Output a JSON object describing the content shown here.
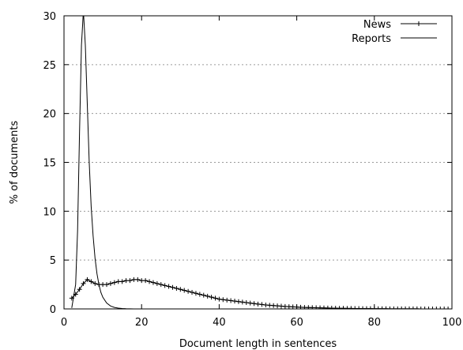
{
  "chart_data": {
    "type": "line",
    "title": "",
    "xlabel": "Document length in sentences",
    "ylabel": "% of documents",
    "xlim": [
      0,
      100
    ],
    "ylim": [
      0,
      30
    ],
    "x_ticks": [
      0,
      20,
      40,
      60,
      80,
      100
    ],
    "y_ticks": [
      0,
      5,
      10,
      15,
      20,
      25,
      30
    ],
    "grid": "horizontal dotted",
    "legend_position": "top-right",
    "series": [
      {
        "name": "News",
        "marker": "plus",
        "color": "#000000",
        "x": [
          2,
          3,
          4,
          5,
          6,
          7,
          8,
          9,
          10,
          11,
          12,
          13,
          14,
          15,
          16,
          17,
          18,
          19,
          20,
          21,
          22,
          23,
          24,
          25,
          26,
          27,
          28,
          29,
          30,
          31,
          32,
          33,
          34,
          35,
          36,
          37,
          38,
          39,
          40,
          41,
          42,
          43,
          44,
          45,
          46,
          47,
          48,
          49,
          50,
          51,
          52,
          53,
          54,
          55,
          56,
          57,
          58,
          59,
          60,
          61,
          62,
          63,
          64,
          65,
          66,
          67,
          68,
          69,
          70,
          71,
          72,
          73,
          74,
          75,
          76,
          77,
          78,
          79,
          80,
          81,
          82,
          83,
          84,
          85,
          86,
          87,
          88,
          89,
          90,
          91,
          92,
          93,
          94,
          95,
          96,
          97,
          98,
          99,
          100
        ],
        "y": [
          1.1,
          1.5,
          2.0,
          2.6,
          3.0,
          2.8,
          2.6,
          2.5,
          2.5,
          2.5,
          2.6,
          2.7,
          2.8,
          2.8,
          2.9,
          2.9,
          3.0,
          3.0,
          2.9,
          2.9,
          2.8,
          2.7,
          2.6,
          2.5,
          2.4,
          2.3,
          2.2,
          2.1,
          2.0,
          1.9,
          1.8,
          1.7,
          1.6,
          1.5,
          1.4,
          1.3,
          1.2,
          1.1,
          1.0,
          0.95,
          0.9,
          0.85,
          0.8,
          0.75,
          0.7,
          0.65,
          0.6,
          0.55,
          0.5,
          0.45,
          0.4,
          0.37,
          0.34,
          0.31,
          0.28,
          0.25,
          0.23,
          0.21,
          0.19,
          0.17,
          0.15,
          0.14,
          0.13,
          0.12,
          0.11,
          0.1,
          0.09,
          0.08,
          0.07,
          0.06,
          0.06,
          0.05,
          0.05,
          0.04,
          0.04,
          0.03,
          0.03,
          0.03,
          0.02,
          0.02,
          0.02,
          0.02,
          0.01,
          0.01,
          0.01,
          0.01,
          0.01,
          0.01,
          0.01,
          0.01,
          0.0,
          0.0,
          0.0,
          0.0,
          0.0,
          0.0,
          0.0,
          0.0,
          0.0
        ]
      },
      {
        "name": "Reports",
        "marker": "none",
        "color": "#000000",
        "x": [
          2,
          3,
          3.5,
          4,
          4.5,
          5,
          5.5,
          6,
          6.5,
          7,
          7.5,
          8,
          8.5,
          9,
          9.5,
          10,
          11,
          12,
          13,
          14,
          15,
          16,
          17,
          18,
          20,
          25,
          30
        ],
        "y": [
          0.1,
          2.5,
          8.0,
          18.0,
          27.0,
          30.5,
          27.0,
          21.0,
          15.0,
          10.5,
          7.5,
          5.2,
          3.6,
          2.5,
          1.7,
          1.2,
          0.6,
          0.3,
          0.15,
          0.08,
          0.04,
          0.02,
          0.01,
          0.0,
          0.0,
          0.0,
          0.0
        ]
      }
    ]
  }
}
